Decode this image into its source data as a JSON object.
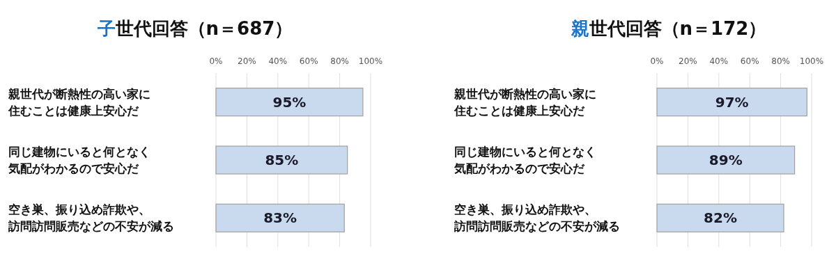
{
  "chart_data": [
    {
      "type": "bar",
      "orientation": "horizontal",
      "title": "子世代回答（n＝687）",
      "categories": [
        "親世代が断熱性の高い家に住むことは健康上安心だ",
        "同じ建物にいると何となく気配がわかるので安心だ",
        "空き巣、振り込め詐欺や、訪問訪問販売などの不安が減る"
      ],
      "values": [
        95,
        85,
        83
      ],
      "value_labels": [
        "95%",
        "85%",
        "83%"
      ],
      "color": "#c9d9ee",
      "xlim": [
        0,
        100
      ],
      "xticks": [
        {
          "value": 0,
          "label": "0%"
        },
        {
          "value": 20,
          "label": "20%"
        },
        {
          "value": 40,
          "label": "40%"
        },
        {
          "value": 60,
          "label": "60%"
        },
        {
          "value": 80,
          "label": "80%"
        },
        {
          "value": 100,
          "label": "100%"
        }
      ],
      "grid": "x"
    },
    {
      "type": "bar",
      "orientation": "horizontal",
      "title": "親世代回答（n＝172）",
      "categories": [
        "親世代が断熱性の高い家に住むことは健康上安心だ",
        "同じ建物にいると何となく気配がわかるので安心だ",
        "空き巣、振り込め詐欺や、訪問訪問販売などの不安が減る"
      ],
      "values": [
        97,
        89,
        82
      ],
      "value_labels": [
        "97%",
        "89%",
        "82%"
      ],
      "color": "#c9d9ee",
      "xlim": [
        0,
        100
      ],
      "xticks": [
        {
          "value": 0,
          "label": "0%"
        },
        {
          "value": 20,
          "label": "20%"
        },
        {
          "value": 40,
          "label": "40%"
        },
        {
          "value": 60,
          "label": "60%"
        },
        {
          "value": 80,
          "label": "80%"
        },
        {
          "value": 100,
          "label": "100%"
        }
      ],
      "grid": "x"
    }
  ]
}
